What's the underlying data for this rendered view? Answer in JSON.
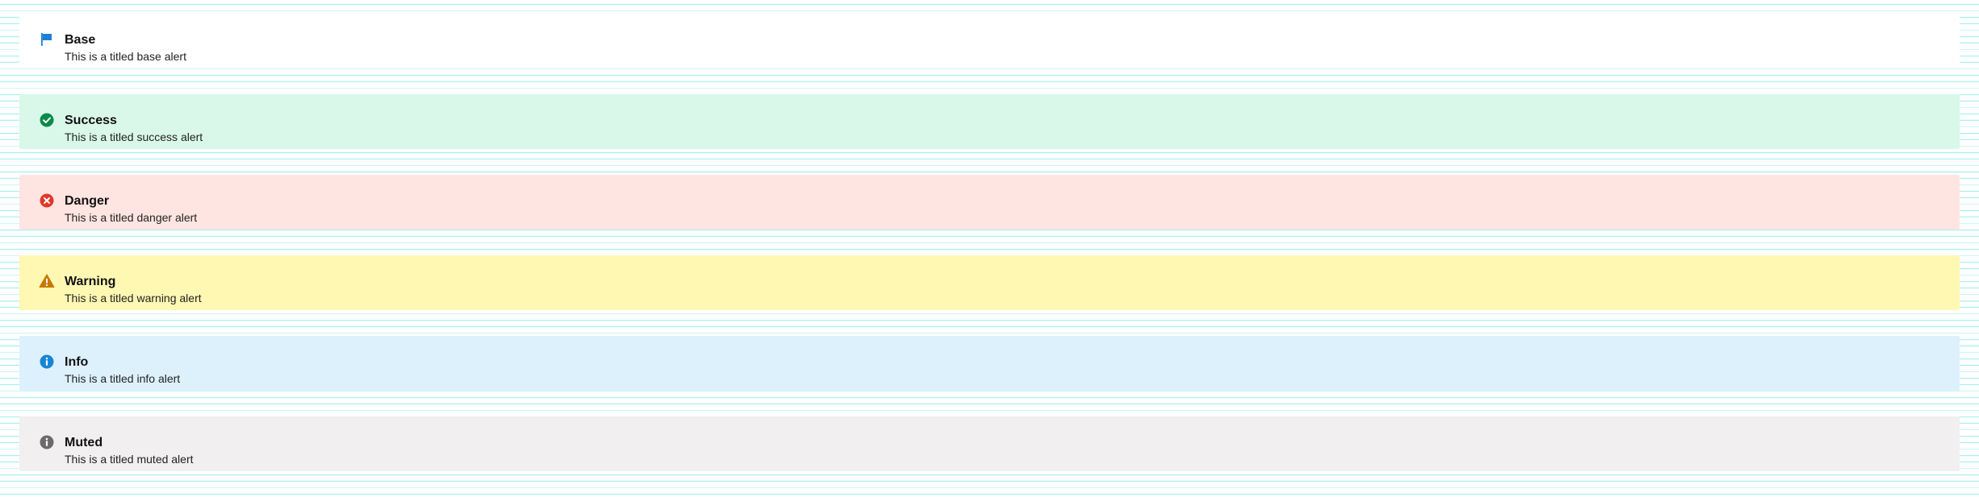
{
  "alerts": [
    {
      "type": "base",
      "icon": "flag-icon",
      "title": "Base",
      "message": "This is a titled base alert",
      "background": "#ffffff",
      "icon_color": "#1e7fd9"
    },
    {
      "type": "success",
      "icon": "check-circle-icon",
      "title": "Success",
      "message": "This is a titled success alert",
      "background": "#d9f8ea",
      "icon_color": "#0b8a4a"
    },
    {
      "type": "danger",
      "icon": "x-circle-icon",
      "title": "Danger",
      "message": "This is a titled danger alert",
      "background": "#ffe5e1",
      "icon_color": "#e0392b"
    },
    {
      "type": "warning",
      "icon": "warning-triangle-icon",
      "title": "Warning",
      "message": "This is a titled warning alert",
      "background": "#fff8b3",
      "icon_color": "#c77a00"
    },
    {
      "type": "info",
      "icon": "info-circle-icon",
      "title": "Info",
      "message": "This is a titled info alert",
      "background": "#ddf1fd",
      "icon_color": "#1785d6"
    },
    {
      "type": "muted",
      "icon": "info-circle-icon",
      "title": "Muted",
      "message": "This is a titled muted alert",
      "background": "#f1efef",
      "icon_color": "#6b6b6b"
    }
  ]
}
